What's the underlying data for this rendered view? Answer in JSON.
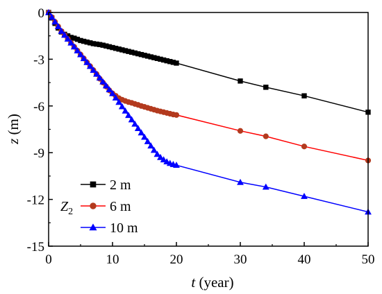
{
  "chart_data": {
    "type": "line",
    "xlabel": {
      "var": "t",
      "unit": " (year)"
    },
    "ylabel": {
      "var": "z",
      "unit": " (m)"
    },
    "xlim": [
      0,
      50
    ],
    "ylim": [
      -15,
      0
    ],
    "xticks": [
      0,
      10,
      20,
      30,
      40,
      50
    ],
    "yticks": [
      0,
      -3,
      -6,
      -9,
      -12,
      -15
    ],
    "ytick_labels": [
      "0",
      "-3",
      "-6",
      "-9",
      "-12",
      "-15"
    ],
    "grid": false,
    "legend": {
      "placement": "bottom-left",
      "title": {
        "base": "Z",
        "sub": "2"
      }
    },
    "series": [
      {
        "name": "2   m",
        "color": "#000000",
        "marker": "square",
        "x": [
          0,
          0.5,
          1,
          1.5,
          2,
          2.5,
          3,
          3.5,
          4,
          4.5,
          5,
          5.5,
          6,
          6.5,
          7,
          7.5,
          8,
          8.5,
          9,
          9.5,
          10,
          10.5,
          11,
          11.5,
          12,
          12.5,
          13,
          13.5,
          14,
          14.5,
          15,
          15.5,
          16,
          16.5,
          17,
          17.5,
          18,
          18.5,
          19,
          19.5,
          20,
          30,
          34,
          40,
          50
        ],
        "y": [
          0,
          -0.35,
          -0.7,
          -1.0,
          -1.25,
          -1.4,
          -1.5,
          -1.6,
          -1.65,
          -1.72,
          -1.8,
          -1.85,
          -1.9,
          -1.95,
          -2.0,
          -2.03,
          -2.06,
          -2.1,
          -2.15,
          -2.2,
          -2.25,
          -2.3,
          -2.35,
          -2.4,
          -2.45,
          -2.5,
          -2.55,
          -2.6,
          -2.65,
          -2.7,
          -2.75,
          -2.8,
          -2.85,
          -2.9,
          -2.95,
          -3.0,
          -3.05,
          -3.1,
          -3.15,
          -3.2,
          -3.25,
          -4.4,
          -4.8,
          -5.35,
          -6.4
        ]
      },
      {
        "name": "6   m",
        "color": "#ff0000",
        "marker_fill": "#b33a1e",
        "marker": "circle",
        "x": [
          0,
          0.5,
          1,
          1.5,
          2,
          2.5,
          3,
          3.5,
          4,
          4.5,
          5,
          5.5,
          6,
          6.5,
          7,
          7.5,
          8,
          8.5,
          9,
          9.5,
          10,
          10.5,
          11,
          11.5,
          12,
          12.5,
          13,
          13.5,
          14,
          14.5,
          15,
          15.5,
          16,
          16.5,
          17,
          17.5,
          18,
          18.5,
          19,
          19.5,
          20,
          30,
          34,
          40,
          50
        ],
        "y": [
          0,
          -0.3,
          -0.6,
          -0.9,
          -1.2,
          -1.45,
          -1.7,
          -1.95,
          -2.2,
          -2.45,
          -2.7,
          -2.95,
          -3.2,
          -3.45,
          -3.7,
          -3.95,
          -4.25,
          -4.5,
          -4.75,
          -5.0,
          -5.2,
          -5.35,
          -5.5,
          -5.6,
          -5.68,
          -5.75,
          -5.8,
          -5.87,
          -5.93,
          -6.0,
          -6.06,
          -6.12,
          -6.18,
          -6.24,
          -6.3,
          -6.35,
          -6.4,
          -6.45,
          -6.5,
          -6.55,
          -6.58,
          -7.6,
          -7.95,
          -8.6,
          -9.5
        ]
      },
      {
        "name": "10 m",
        "color": "#0000ff",
        "marker": "triangle",
        "x": [
          0,
          0.5,
          1,
          1.5,
          2,
          2.5,
          3,
          3.5,
          4,
          4.5,
          5,
          5.5,
          6,
          6.5,
          7,
          7.5,
          8,
          8.5,
          9,
          9.5,
          10,
          10.5,
          11,
          11.5,
          12,
          12.5,
          13,
          13.5,
          14,
          14.5,
          15,
          15.5,
          16,
          16.5,
          17,
          17.5,
          18,
          18.5,
          19,
          19.5,
          20,
          30,
          34,
          40,
          50
        ],
        "y": [
          0,
          -0.3,
          -0.6,
          -0.9,
          -1.2,
          -1.45,
          -1.7,
          -1.95,
          -2.2,
          -2.45,
          -2.7,
          -2.95,
          -3.2,
          -3.45,
          -3.7,
          -3.95,
          -4.2,
          -4.45,
          -4.7,
          -4.95,
          -5.2,
          -5.48,
          -5.76,
          -6.04,
          -6.32,
          -6.6,
          -6.88,
          -7.16,
          -7.44,
          -7.72,
          -8.0,
          -8.28,
          -8.56,
          -8.84,
          -9.1,
          -9.3,
          -9.45,
          -9.58,
          -9.68,
          -9.75,
          -9.8,
          -10.9,
          -11.2,
          -11.8,
          -12.8
        ]
      }
    ]
  }
}
